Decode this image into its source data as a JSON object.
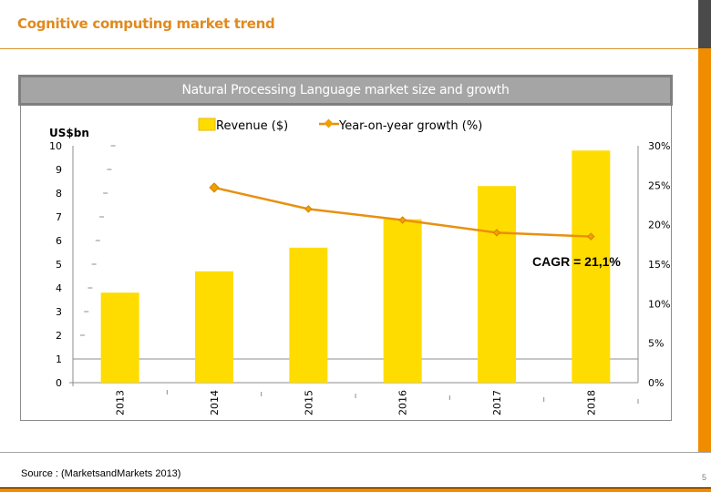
{
  "slide": {
    "title": "Cognitive computing market trend",
    "source": "Source : (MarketsandMarkets 2013)",
    "page_number": "5",
    "accent_color": "#f08c00",
    "title_color": "#e08a1e"
  },
  "chart_data": {
    "type": "bar",
    "title": "Natural Processing Language market size and growth",
    "categories": [
      "2013",
      "2014",
      "2015",
      "2016",
      "2017",
      "2018"
    ],
    "series": [
      {
        "name": "Revenue ($)",
        "type": "bar",
        "axis": "left",
        "color": "#ffdc00",
        "values": [
          3.8,
          4.7,
          5.7,
          6.9,
          8.3,
          9.8
        ]
      },
      {
        "name": "Year-on-year growth (%)",
        "type": "line",
        "axis": "right",
        "color": "#e8900f",
        "marker": "diamond",
        "values": [
          null,
          24.7,
          22.0,
          20.6,
          19.0,
          18.5
        ]
      }
    ],
    "ylabel": "US$bn",
    "ylim": [
      0,
      10
    ],
    "yticks": [
      "0",
      "1",
      "2",
      "3",
      "4",
      "5",
      "6",
      "7",
      "8",
      "9",
      "10"
    ],
    "y2lim": [
      0,
      30
    ],
    "y2ticks": [
      "0%",
      "5%",
      "10%",
      "15%",
      "20%",
      "25%",
      "30%"
    ],
    "legend": "top-center",
    "annotation": "CAGR = 21,1%",
    "grid": false
  }
}
